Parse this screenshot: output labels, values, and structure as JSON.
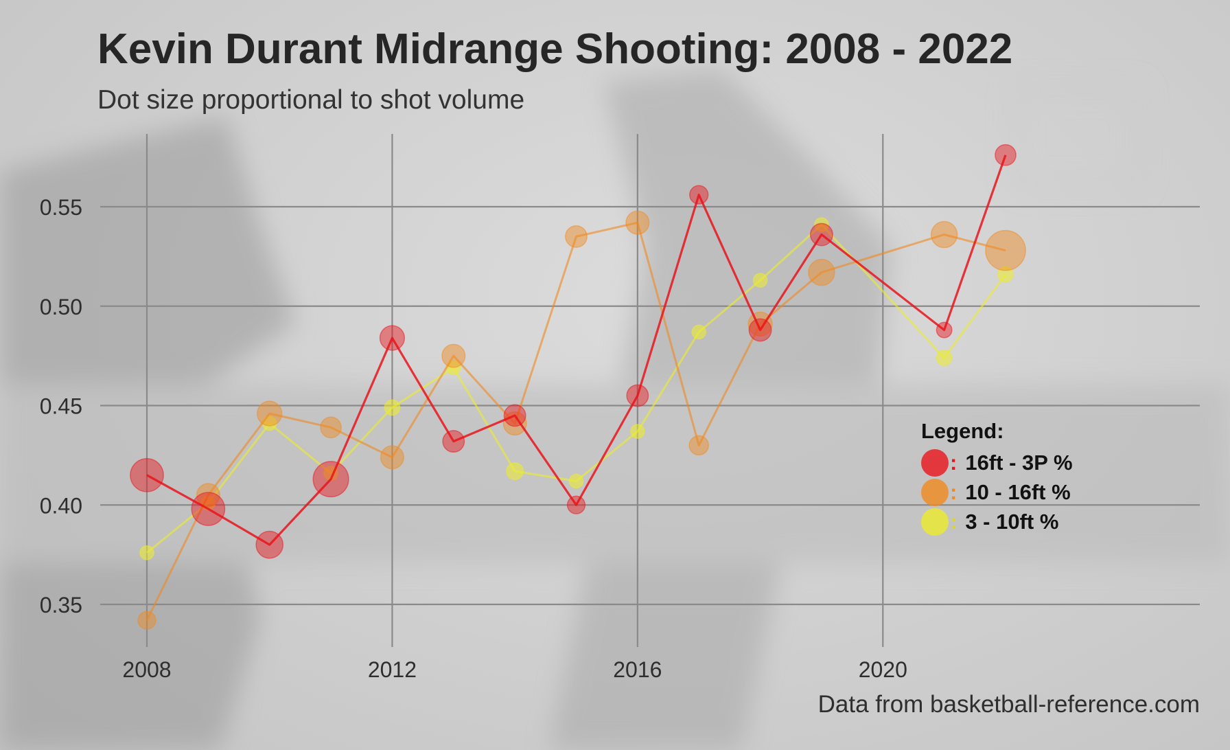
{
  "chart_data": {
    "type": "line",
    "title": "Kevin Durant Midrange Shooting: 2008 - 2022",
    "subtitle": "Dot size proportional to shot volume",
    "caption": "Data from basketball-reference.com",
    "xlabel": "",
    "ylabel": "",
    "x_ticks": [
      "2008",
      "2012",
      "2016",
      "2020"
    ],
    "y_ticks": [
      "0.35",
      "0.40",
      "0.45",
      "0.50",
      "0.55"
    ],
    "xlim": [
      2008,
      2022
    ],
    "ylim": [
      0.34,
      0.58
    ],
    "grid": true,
    "legend_title": "Legend:",
    "legend_position": "right",
    "x": [
      2008,
      2009,
      2010,
      2011,
      2012,
      2013,
      2014,
      2015,
      2016,
      2017,
      2018,
      2019,
      2021,
      2022
    ],
    "series": [
      {
        "name": "16ft - 3P %",
        "color": "#e8141b",
        "values": [
          0.415,
          0.398,
          0.38,
          0.413,
          0.484,
          0.432,
          0.445,
          0.4,
          0.455,
          0.556,
          0.488,
          0.536,
          0.488,
          0.576
        ],
        "volume": [
          4.3,
          4.3,
          3.5,
          4.6,
          3.2,
          2.8,
          2.8,
          2.3,
          2.8,
          2.4,
          2.9,
          2.9,
          2.0,
          2.7
        ]
      },
      {
        "name": "10 - 16ft %",
        "color": "#f0891e",
        "values": [
          0.342,
          0.405,
          0.446,
          0.439,
          0.424,
          0.475,
          0.441,
          0.535,
          0.542,
          0.43,
          0.491,
          0.517,
          0.536,
          0.528
        ],
        "volume": [
          2.3,
          3.0,
          3.2,
          2.7,
          3.0,
          3.0,
          3.0,
          2.8,
          3.0,
          2.5,
          3.1,
          3.4,
          3.4,
          5.2
        ]
      },
      {
        "name": "3 - 10ft %",
        "color": "#ecec2c",
        "values": [
          0.376,
          0.401,
          0.441,
          0.416,
          0.449,
          0.469,
          0.417,
          0.412,
          0.437,
          0.487,
          0.513,
          0.541,
          0.474,
          0.516
        ],
        "volume": [
          1.8,
          1.8,
          1.8,
          1.8,
          2.0,
          1.8,
          2.2,
          1.8,
          1.8,
          1.8,
          1.8,
          1.8,
          2.0,
          2.0
        ]
      }
    ]
  }
}
